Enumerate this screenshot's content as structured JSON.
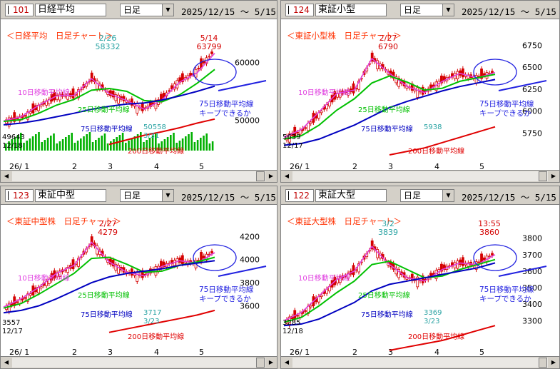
{
  "date_range": "2025/12/15 ～ 5/15",
  "period": "日足",
  "colors": {
    "candle": "#d40000",
    "ma10": "#e040e0",
    "ma25": "#00c000",
    "ma75": "#0000c0",
    "ma200": "#e00000",
    "annot": "#ff3000",
    "peak": "#29a3a3",
    "arrow": "#2020e0",
    "vol": "#00b000"
  },
  "charts": [
    {
      "code": "101",
      "name": "日経平均",
      "title": "＜日経平均　日足チャート＞",
      "labels": {
        "ma10": "10日移動平均線",
        "ma25": "25日移動平均線",
        "ma75": "75日移動平均線",
        "ma200": "200日移動平均線",
        "note1": "75日移動平均線",
        "note2": "キープできるか"
      },
      "start": {
        "date": "12/18",
        "value": "49643"
      },
      "peaks": [
        {
          "date": "2/26",
          "value": "58332"
        },
        {
          "date": "5/14",
          "value": "63799"
        }
      ],
      "low": {
        "date": "3/31",
        "value": "50558"
      },
      "xticks": [
        "26/ 1",
        "2",
        "3",
        "4",
        "5"
      ],
      "chart_data": {
        "type": "line",
        "x": [
          "12/18",
          "1/5",
          "1/15",
          "2/2",
          "2/13",
          "2/26",
          "3/10",
          "3/19",
          "3/31",
          "4/10",
          "4/21",
          "5/1",
          "5/14"
        ],
        "series": [
          {
            "name": "10日移動平均線",
            "values": [
              49900,
              50600,
              52600,
              54200,
              54300,
              57200,
              54600,
              53400,
              51900,
              53500,
              56600,
              58200,
              61600
            ]
          },
          {
            "name": "25日移動平均線",
            "values": [
              49800,
              50100,
              51200,
              52600,
              53600,
              55200,
              55500,
              55000,
              53400,
              53200,
              54400,
              56400,
              58800
            ]
          },
          {
            "name": "75日移動平均線",
            "values": [
              49200,
              49500,
              50000,
              50600,
              51200,
              51900,
              52400,
              52800,
              53000,
              53500,
              54200,
              55000,
              55900
            ]
          },
          {
            "name": "200日移動平均線",
            "values": [
              null,
              null,
              null,
              null,
              null,
              null,
              45800,
              46600,
              47400,
              48000,
              48700,
              49500,
              50200
            ]
          }
        ],
        "ylim": [
          44000,
          66000
        ],
        "yticks": [
          50000,
          60000
        ]
      }
    },
    {
      "code": "124",
      "name": "東証小型",
      "title": "＜東証小型株　日足チャート＞",
      "labels": {
        "ma10": "10日移動平均線",
        "ma25": "25日移動平均線",
        "ma75": "75日移動平均線",
        "ma200": "200日移動平均線",
        "note1": "75日移動平均線",
        "note2": "キープできるか"
      },
      "start": {
        "date": "12/17",
        "value": "5639"
      },
      "peaks": [
        {
          "date": "2/27",
          "value": "6790"
        }
      ],
      "low": {
        "date": "",
        "value": "5938"
      },
      "xticks": [
        "26/ 1",
        "2",
        "3",
        "4",
        "5"
      ],
      "chart_data": {
        "type": "line",
        "x": [
          "12/17",
          "1/5",
          "1/15",
          "2/2",
          "2/13",
          "2/27",
          "3/10",
          "3/19",
          "3/31",
          "4/10",
          "4/21",
          "5/1",
          "5/14"
        ],
        "series": [
          {
            "name": "10日移動平均線",
            "values": [
              5700,
              5790,
              5990,
              6200,
              6240,
              6600,
              6430,
              6280,
              6210,
              6340,
              6430,
              6380,
              6440
            ]
          },
          {
            "name": "25日移動平均線",
            "values": [
              5680,
              5720,
              5840,
              6010,
              6140,
              6320,
              6400,
              6330,
              6240,
              6260,
              6340,
              6380,
              6420
            ]
          },
          {
            "name": "75日移動平均線",
            "values": [
              5610,
              5630,
              5680,
              5760,
              5840,
              5940,
              6040,
              6110,
              6170,
              6230,
              6280,
              6320,
              6360
            ]
          },
          {
            "name": "200日移動平均線",
            "values": [
              null,
              null,
              null,
              null,
              null,
              null,
              5500,
              5540,
              5580,
              5640,
              5700,
              5760,
              5820
            ]
          }
        ],
        "ylim": [
          5500,
          6950
        ],
        "yticks": [
          5750,
          6000,
          6250,
          6500,
          6750
        ]
      }
    },
    {
      "code": "123",
      "name": "東証中型",
      "title": "＜東証中型株　日足チャート＞",
      "labels": {
        "ma10": "10日移動平均線",
        "ma25": "25日移動平均線",
        "ma75": "75日移動平均線",
        "ma200": "200日移動平均線",
        "note1": "75日移動平均線",
        "note2": "キープできるか"
      },
      "start": {
        "date": "12/17",
        "value": "3557"
      },
      "peaks": [
        {
          "date": "2/27",
          "value": "4279"
        }
      ],
      "low": {
        "date": "3/23",
        "value": "3717"
      },
      "xticks": [
        "26/ 1",
        "2",
        "3",
        "4",
        "5"
      ],
      "chart_data": {
        "type": "line",
        "x": [
          "12/17",
          "1/5",
          "1/15",
          "2/2",
          "2/13",
          "2/27",
          "3/10",
          "3/19",
          "3/31",
          "4/10",
          "4/21",
          "5/1",
          "5/14"
        ],
        "series": [
          {
            "name": "10日移動平均線",
            "values": [
              3590,
              3660,
              3760,
              3880,
              3950,
              4150,
              3980,
              3890,
              3860,
              3940,
              3990,
              3970,
              4060
            ]
          },
          {
            "name": "25日移動平均線",
            "values": [
              3580,
              3620,
              3700,
              3790,
              3880,
              4010,
              4020,
              3960,
              3890,
              3900,
              3950,
              3980,
              4020
            ]
          },
          {
            "name": "75日移動平均線",
            "values": [
              3540,
              3560,
              3600,
              3660,
              3730,
              3800,
              3850,
              3880,
              3900,
              3920,
              3950,
              3970,
              3990
            ]
          },
          {
            "name": "200日移動平均線",
            "values": [
              null,
              null,
              null,
              null,
              null,
              null,
              3370,
              3400,
              3430,
              3460,
              3490,
              3520,
              3560
            ]
          }
        ],
        "ylim": [
          3300,
          4400
        ],
        "yticks": [
          3600,
          3800,
          4000,
          4200
        ]
      }
    },
    {
      "code": "122",
      "name": "東証大型",
      "title": "＜東証大型株　日足チャート＞",
      "labels": {
        "ma10": "10日移動平均線",
        "ma25": "25日移動平均線",
        "ma75": "75日移動平均線",
        "ma200": "200日移動平均線",
        "note1": "75日移動平均線",
        "note2": "キープできるか"
      },
      "start": {
        "date": "12/18",
        "value": "3285"
      },
      "peaks": [
        {
          "date": "3/2",
          "value": "3839"
        },
        {
          "date": "13:55",
          "value": "3860"
        }
      ],
      "low": {
        "date": "3/23",
        "value": "3369"
      },
      "xticks": [
        "26/ 1",
        "2",
        "3",
        "4",
        "5"
      ],
      "chart_data": {
        "type": "line",
        "x": [
          "12/18",
          "1/5",
          "1/15",
          "2/2",
          "2/13",
          "3/2",
          "3/10",
          "3/19",
          "3/31",
          "4/10",
          "4/21",
          "5/1",
          "5/14"
        ],
        "series": [
          {
            "name": "10日移動平均線",
            "values": [
              3300,
              3350,
              3450,
              3550,
              3600,
              3750,
              3640,
              3560,
              3540,
              3610,
              3650,
              3640,
              3700
            ]
          },
          {
            "name": "25日移動平均線",
            "values": [
              3290,
              3320,
              3390,
              3470,
              3540,
              3640,
              3660,
              3610,
              3560,
              3570,
              3610,
              3640,
              3670
            ]
          },
          {
            "name": "75日移動平均線",
            "values": [
              3270,
              3280,
              3310,
              3360,
              3410,
              3480,
              3520,
              3540,
              3560,
              3580,
              3600,
              3620,
              3650
            ]
          },
          {
            "name": "200日移動平均線",
            "values": [
              null,
              null,
              null,
              null,
              null,
              null,
              3120,
              3140,
              3160,
              3180,
              3210,
              3240,
              3270
            ]
          }
        ],
        "ylim": [
          3180,
          3950
        ],
        "yticks": [
          3300,
          3400,
          3500,
          3600,
          3700,
          3800
        ]
      }
    }
  ]
}
